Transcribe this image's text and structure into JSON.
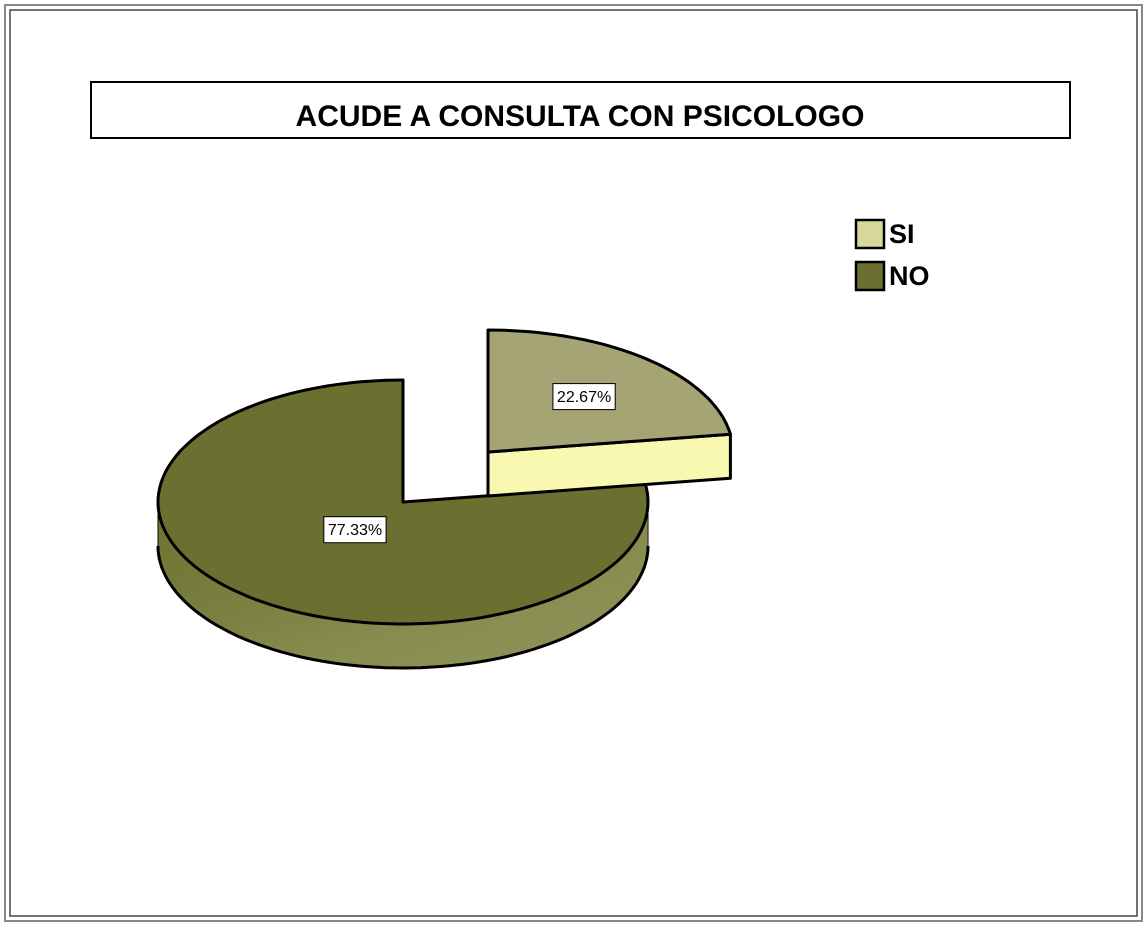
{
  "chart_data": {
    "type": "pie",
    "title": "ACUDE A CONSULTA CON PSICOLOGO",
    "categories": [
      "SI",
      "NO"
    ],
    "values": [
      22.67,
      77.33
    ],
    "value_labels": [
      "22.67%",
      "77.33%"
    ],
    "colors": [
      "#d8d89a",
      "#6b7030"
    ],
    "explode": [
      1,
      0
    ],
    "legend": "upper right"
  }
}
